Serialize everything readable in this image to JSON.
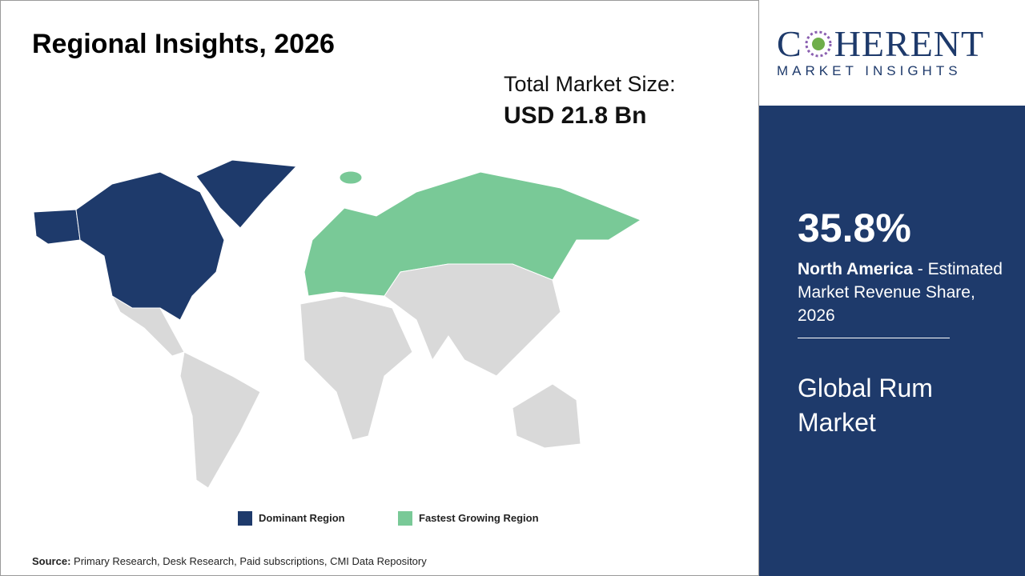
{
  "header": {
    "title": "Regional Insights, 2026"
  },
  "market_size": {
    "label": "Total Market Size:",
    "value": "USD 21.8 Bn"
  },
  "legend": {
    "dominant": "Dominant Region",
    "fastest": "Fastest Growing Region"
  },
  "source": {
    "label": "Source:",
    "text": "Primary Research, Desk Research, Paid subscriptions, CMI Data Repository"
  },
  "logo": {
    "name_start": "C",
    "name_end": "HERENT",
    "tagline": "MARKET INSIGHTS"
  },
  "panel": {
    "share": "35.8%",
    "region": "North America",
    "description": " - Estimated Market Revenue Share, 2026",
    "market": "Global Rum Market"
  }
}
